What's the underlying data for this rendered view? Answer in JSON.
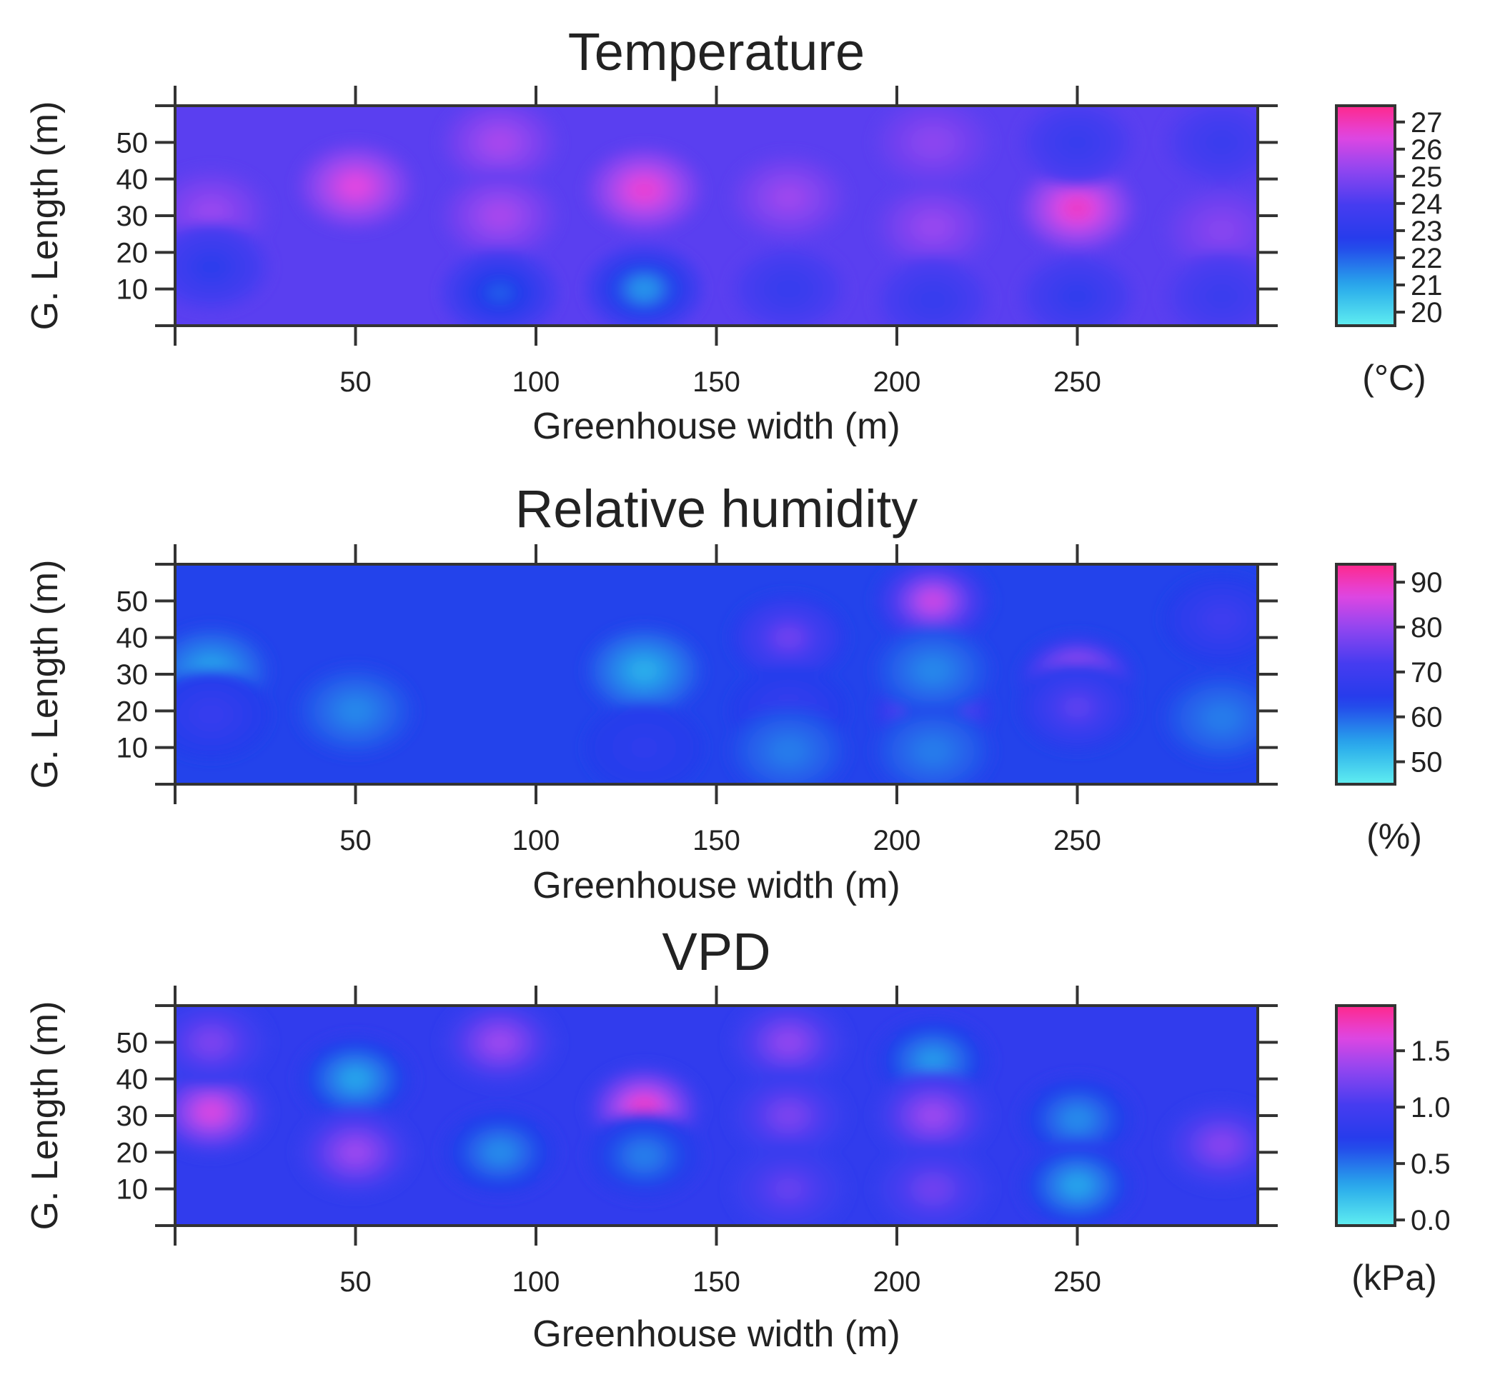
{
  "chart_data": [
    {
      "type": "heatmap",
      "title": "Temperature",
      "xlabel": "Greenhouse width (m)",
      "ylabel": "G. Length (m)",
      "xlim": [
        0,
        300
      ],
      "ylim": [
        0,
        60
      ],
      "x_ticks": [
        50,
        100,
        150,
        200,
        250
      ],
      "y_ticks": [
        10,
        20,
        30,
        40,
        50
      ],
      "colorbar": {
        "unit": "(°C)",
        "range": [
          19.5,
          27.6
        ],
        "ticks": [
          20,
          21,
          22,
          23,
          24,
          25,
          26,
          27
        ]
      },
      "background": 24.3,
      "hotspots": [
        {
          "x": 10,
          "y": 31,
          "value": 25.5
        },
        {
          "x": 10,
          "y": 16,
          "value": 22.8
        },
        {
          "x": 50,
          "y": 38,
          "value": 26.8
        },
        {
          "x": 90,
          "y": 50,
          "value": 25.8
        },
        {
          "x": 90,
          "y": 30,
          "value": 25.8
        },
        {
          "x": 90,
          "y": 9,
          "value": 21.8
        },
        {
          "x": 130,
          "y": 37,
          "value": 27.0
        },
        {
          "x": 130,
          "y": 10,
          "value": 20.8
        },
        {
          "x": 170,
          "y": 35,
          "value": 25.6
        },
        {
          "x": 170,
          "y": 10,
          "value": 23.2
        },
        {
          "x": 210,
          "y": 50,
          "value": 25.3
        },
        {
          "x": 210,
          "y": 27,
          "value": 25.5
        },
        {
          "x": 210,
          "y": 7,
          "value": 23.2
        },
        {
          "x": 250,
          "y": 32,
          "value": 27.2
        },
        {
          "x": 250,
          "y": 50,
          "value": 23.3
        },
        {
          "x": 250,
          "y": 8,
          "value": 23.0
        },
        {
          "x": 290,
          "y": 26,
          "value": 25.2
        },
        {
          "x": 290,
          "y": 50,
          "value": 23.4
        },
        {
          "x": 290,
          "y": 8,
          "value": 23.4
        }
      ]
    },
    {
      "type": "heatmap",
      "title": "Relative humidity",
      "xlabel": "Greenhouse width (m)",
      "ylabel": "G. Length (m)",
      "xlim": [
        0,
        300
      ],
      "ylim": [
        0,
        60
      ],
      "x_ticks": [
        50,
        100,
        150,
        200,
        250
      ],
      "y_ticks": [
        10,
        20,
        30,
        40,
        50
      ],
      "colorbar": {
        "unit": "(%)",
        "range": [
          45,
          94
        ],
        "ticks": [
          50,
          60,
          70,
          80,
          90
        ]
      },
      "background": 63,
      "hotspots": [
        {
          "x": 10,
          "y": 31,
          "value": 53
        },
        {
          "x": 10,
          "y": 19,
          "value": 69
        },
        {
          "x": 50,
          "y": 20,
          "value": 56
        },
        {
          "x": 130,
          "y": 31,
          "value": 52
        },
        {
          "x": 130,
          "y": 10,
          "value": 67
        },
        {
          "x": 170,
          "y": 40,
          "value": 78
        },
        {
          "x": 170,
          "y": 20,
          "value": 69
        },
        {
          "x": 170,
          "y": 9,
          "value": 57
        },
        {
          "x": 210,
          "y": 50,
          "value": 88
        },
        {
          "x": 210,
          "y": 20,
          "value": 86
        },
        {
          "x": 210,
          "y": 31,
          "value": 56
        },
        {
          "x": 210,
          "y": 9,
          "value": 57
        },
        {
          "x": 250,
          "y": 29,
          "value": 91
        },
        {
          "x": 250,
          "y": 21,
          "value": 76
        },
        {
          "x": 290,
          "y": 45,
          "value": 71
        },
        {
          "x": 290,
          "y": 18,
          "value": 57
        }
      ]
    },
    {
      "type": "heatmap",
      "title": "VPD",
      "xlabel": "Greenhouse width (m)",
      "ylabel": "G. Length (m)",
      "xlim": [
        0,
        300
      ],
      "ylim": [
        0,
        60
      ],
      "x_ticks": [
        50,
        100,
        150,
        200,
        250
      ],
      "y_ticks": [
        10,
        20,
        30,
        40,
        50
      ],
      "colorbar": {
        "unit": "(kPa)",
        "range": [
          -0.05,
          1.9
        ],
        "ticks": [
          "0.0",
          "0.5",
          "1.0",
          "1.5"
        ]
      },
      "background": 0.82,
      "hotspots": [
        {
          "x": 10,
          "y": 31,
          "value": 1.7
        },
        {
          "x": 10,
          "y": 50,
          "value": 1.3
        },
        {
          "x": 50,
          "y": 40,
          "value": 0.25
        },
        {
          "x": 50,
          "y": 20,
          "value": 1.45
        },
        {
          "x": 90,
          "y": 50,
          "value": 1.45
        },
        {
          "x": 90,
          "y": 20,
          "value": 0.35
        },
        {
          "x": 130,
          "y": 32,
          "value": 1.85
        },
        {
          "x": 130,
          "y": 19,
          "value": 0.4
        },
        {
          "x": 170,
          "y": 50,
          "value": 1.4
        },
        {
          "x": 170,
          "y": 30,
          "value": 1.3
        },
        {
          "x": 170,
          "y": 10,
          "value": 1.2
        },
        {
          "x": 210,
          "y": 45,
          "value": 0.3
        },
        {
          "x": 210,
          "y": 30,
          "value": 1.45
        },
        {
          "x": 210,
          "y": 10,
          "value": 1.25
        },
        {
          "x": 250,
          "y": 29,
          "value": 0.35
        },
        {
          "x": 250,
          "y": 11,
          "value": 0.25
        },
        {
          "x": 290,
          "y": 22,
          "value": 1.35
        }
      ]
    }
  ]
}
